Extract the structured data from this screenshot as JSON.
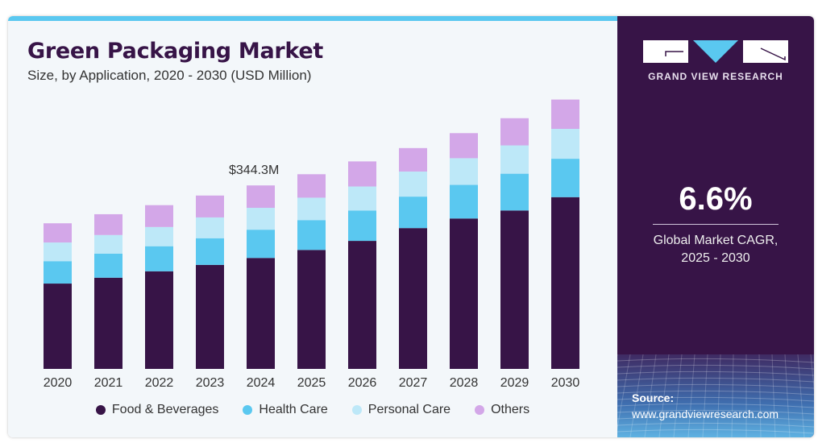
{
  "header": {
    "title": "Green Packaging Market",
    "subtitle": "Size, by Application, 2020 - 2030 (USD Million)"
  },
  "sidebar": {
    "brand": "GRAND VIEW RESEARCH",
    "cagr_value": "6.6%",
    "cagr_label_line1": "Global Market CAGR,",
    "cagr_label_line2": "2025 - 2030",
    "source_label": "Source:",
    "source_url": "www.grandviewresearch.com"
  },
  "colors": {
    "food_beverages": "#371447",
    "health_care": "#5ac8f0",
    "personal_care": "#bde8f8",
    "others": "#d3a7e8",
    "accent": "#5ac8f0"
  },
  "chart_data": {
    "type": "bar",
    "stacked": true,
    "title": "Green Packaging Market",
    "subtitle": "Size, by Application, 2020 - 2030 (USD Million)",
    "xlabel": "",
    "ylabel": "USD Million",
    "categories": [
      "2020",
      "2021",
      "2022",
      "2023",
      "2024",
      "2025",
      "2026",
      "2027",
      "2028",
      "2029",
      "2030"
    ],
    "series": [
      {
        "name": "Food & Beverages",
        "values": [
          160,
          171,
          183,
          195,
          208,
          223,
          240,
          264,
          282,
          297,
          322
        ]
      },
      {
        "name": "Health Care",
        "values": [
          42,
          45,
          47,
          50,
          53,
          56,
          57,
          59,
          63,
          69,
          72
        ]
      },
      {
        "name": "Personal Care",
        "values": [
          35,
          35,
          36,
          39,
          41,
          42,
          45,
          47,
          50,
          53,
          56
        ]
      },
      {
        "name": "Others",
        "values": [
          36,
          39,
          41,
          41,
          42,
          44,
          47,
          44,
          47,
          51,
          55
        ]
      }
    ],
    "annotations": [
      {
        "category": "2024",
        "text": "$344.3M"
      }
    ],
    "ylim": [
      0,
      520
    ],
    "grid": false,
    "legend": "bottom"
  }
}
